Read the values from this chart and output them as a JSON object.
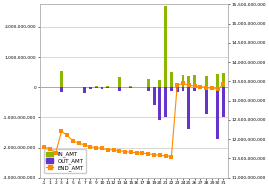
{
  "categories": [
    "-1",
    "1",
    "2",
    "3",
    "4",
    "5",
    "6",
    "7",
    "8",
    "9",
    "10",
    "11",
    "12",
    "13",
    "14",
    "15",
    "16",
    "17",
    "18",
    "19",
    "20",
    "21",
    "22",
    "23",
    "24",
    "25",
    "26",
    "27",
    "28",
    "29",
    "30",
    "31"
  ],
  "in_amt": [
    0,
    0,
    0,
    550000000,
    0,
    0,
    0,
    0,
    0,
    30000000,
    20000000,
    25000000,
    0,
    350000000,
    0,
    25000000,
    0,
    0,
    280000000,
    0,
    230000000,
    2700000000,
    500000000,
    40000000,
    420000000,
    380000000,
    400000000,
    0,
    380000000,
    0,
    450000000,
    480000000
  ],
  "out_amt": [
    0,
    0,
    0,
    -150000000,
    0,
    0,
    0,
    -200000000,
    -50000000,
    -25000000,
    -50000000,
    -35000000,
    0,
    -130000000,
    0,
    -25000000,
    0,
    0,
    -130000000,
    -600000000,
    -1100000000,
    -1000000000,
    -140000000,
    -160000000,
    -140000000,
    -1400000000,
    -140000000,
    0,
    -900000000,
    0,
    -1700000000,
    -1000000000
  ],
  "end_amt": [
    11800000000,
    11750000000,
    11650000000,
    12200000000,
    12100000000,
    11950000000,
    11900000000,
    11850000000,
    11800000000,
    11780000000,
    11760000000,
    11730000000,
    11720000000,
    11700000000,
    11680000000,
    11660000000,
    11650000000,
    11640000000,
    11620000000,
    11600000000,
    11580000000,
    11570000000,
    11550000000,
    13400000000,
    13450000000,
    13400000000,
    13380000000,
    13360000000,
    13340000000,
    13320000000,
    13300000000,
    13420000000
  ],
  "in_color": "#8DB600",
  "out_color": "#6633CC",
  "end_color": "#FF8C00",
  "bg_color": "#FFFFFF",
  "grid_color": "#BBBBBB",
  "ylim_left": [
    -3000000000,
    2750000000
  ],
  "ylim_right": [
    11000000000,
    15500000000
  ],
  "left_ticks": [
    -3000000000,
    -2000000000,
    -1000000000,
    0,
    1000000000,
    2000000000
  ],
  "left_tick_labels": [
    "-3,000,000,000",
    "-2,000,000,000",
    "-1,000,000,000",
    "0",
    "1,000,000,000",
    "2,000,000,000"
  ],
  "right_ticks": [
    11000000000,
    11500000000,
    12000000000,
    12500000000,
    13000000000,
    13500000000,
    14000000000,
    14500000000,
    15000000000,
    15500000000
  ],
  "right_tick_labels": [
    "11,000,000,000",
    "11,500,000,000",
    "12,000,000,000",
    "12,500,000,000",
    "13,000,000,000",
    "13,500,000,000",
    "14,000,000,000",
    "14,500,000,000",
    "15,000,000,000",
    "15,500,000,000"
  ],
  "legend_labels": [
    "IN_AMT",
    "OUT_AMT",
    "END_AMT"
  ],
  "marker_size": 2.5,
  "line_width": 0.8,
  "bar_width": 0.5,
  "tick_fontsize": 3.2,
  "legend_fontsize": 4.0
}
